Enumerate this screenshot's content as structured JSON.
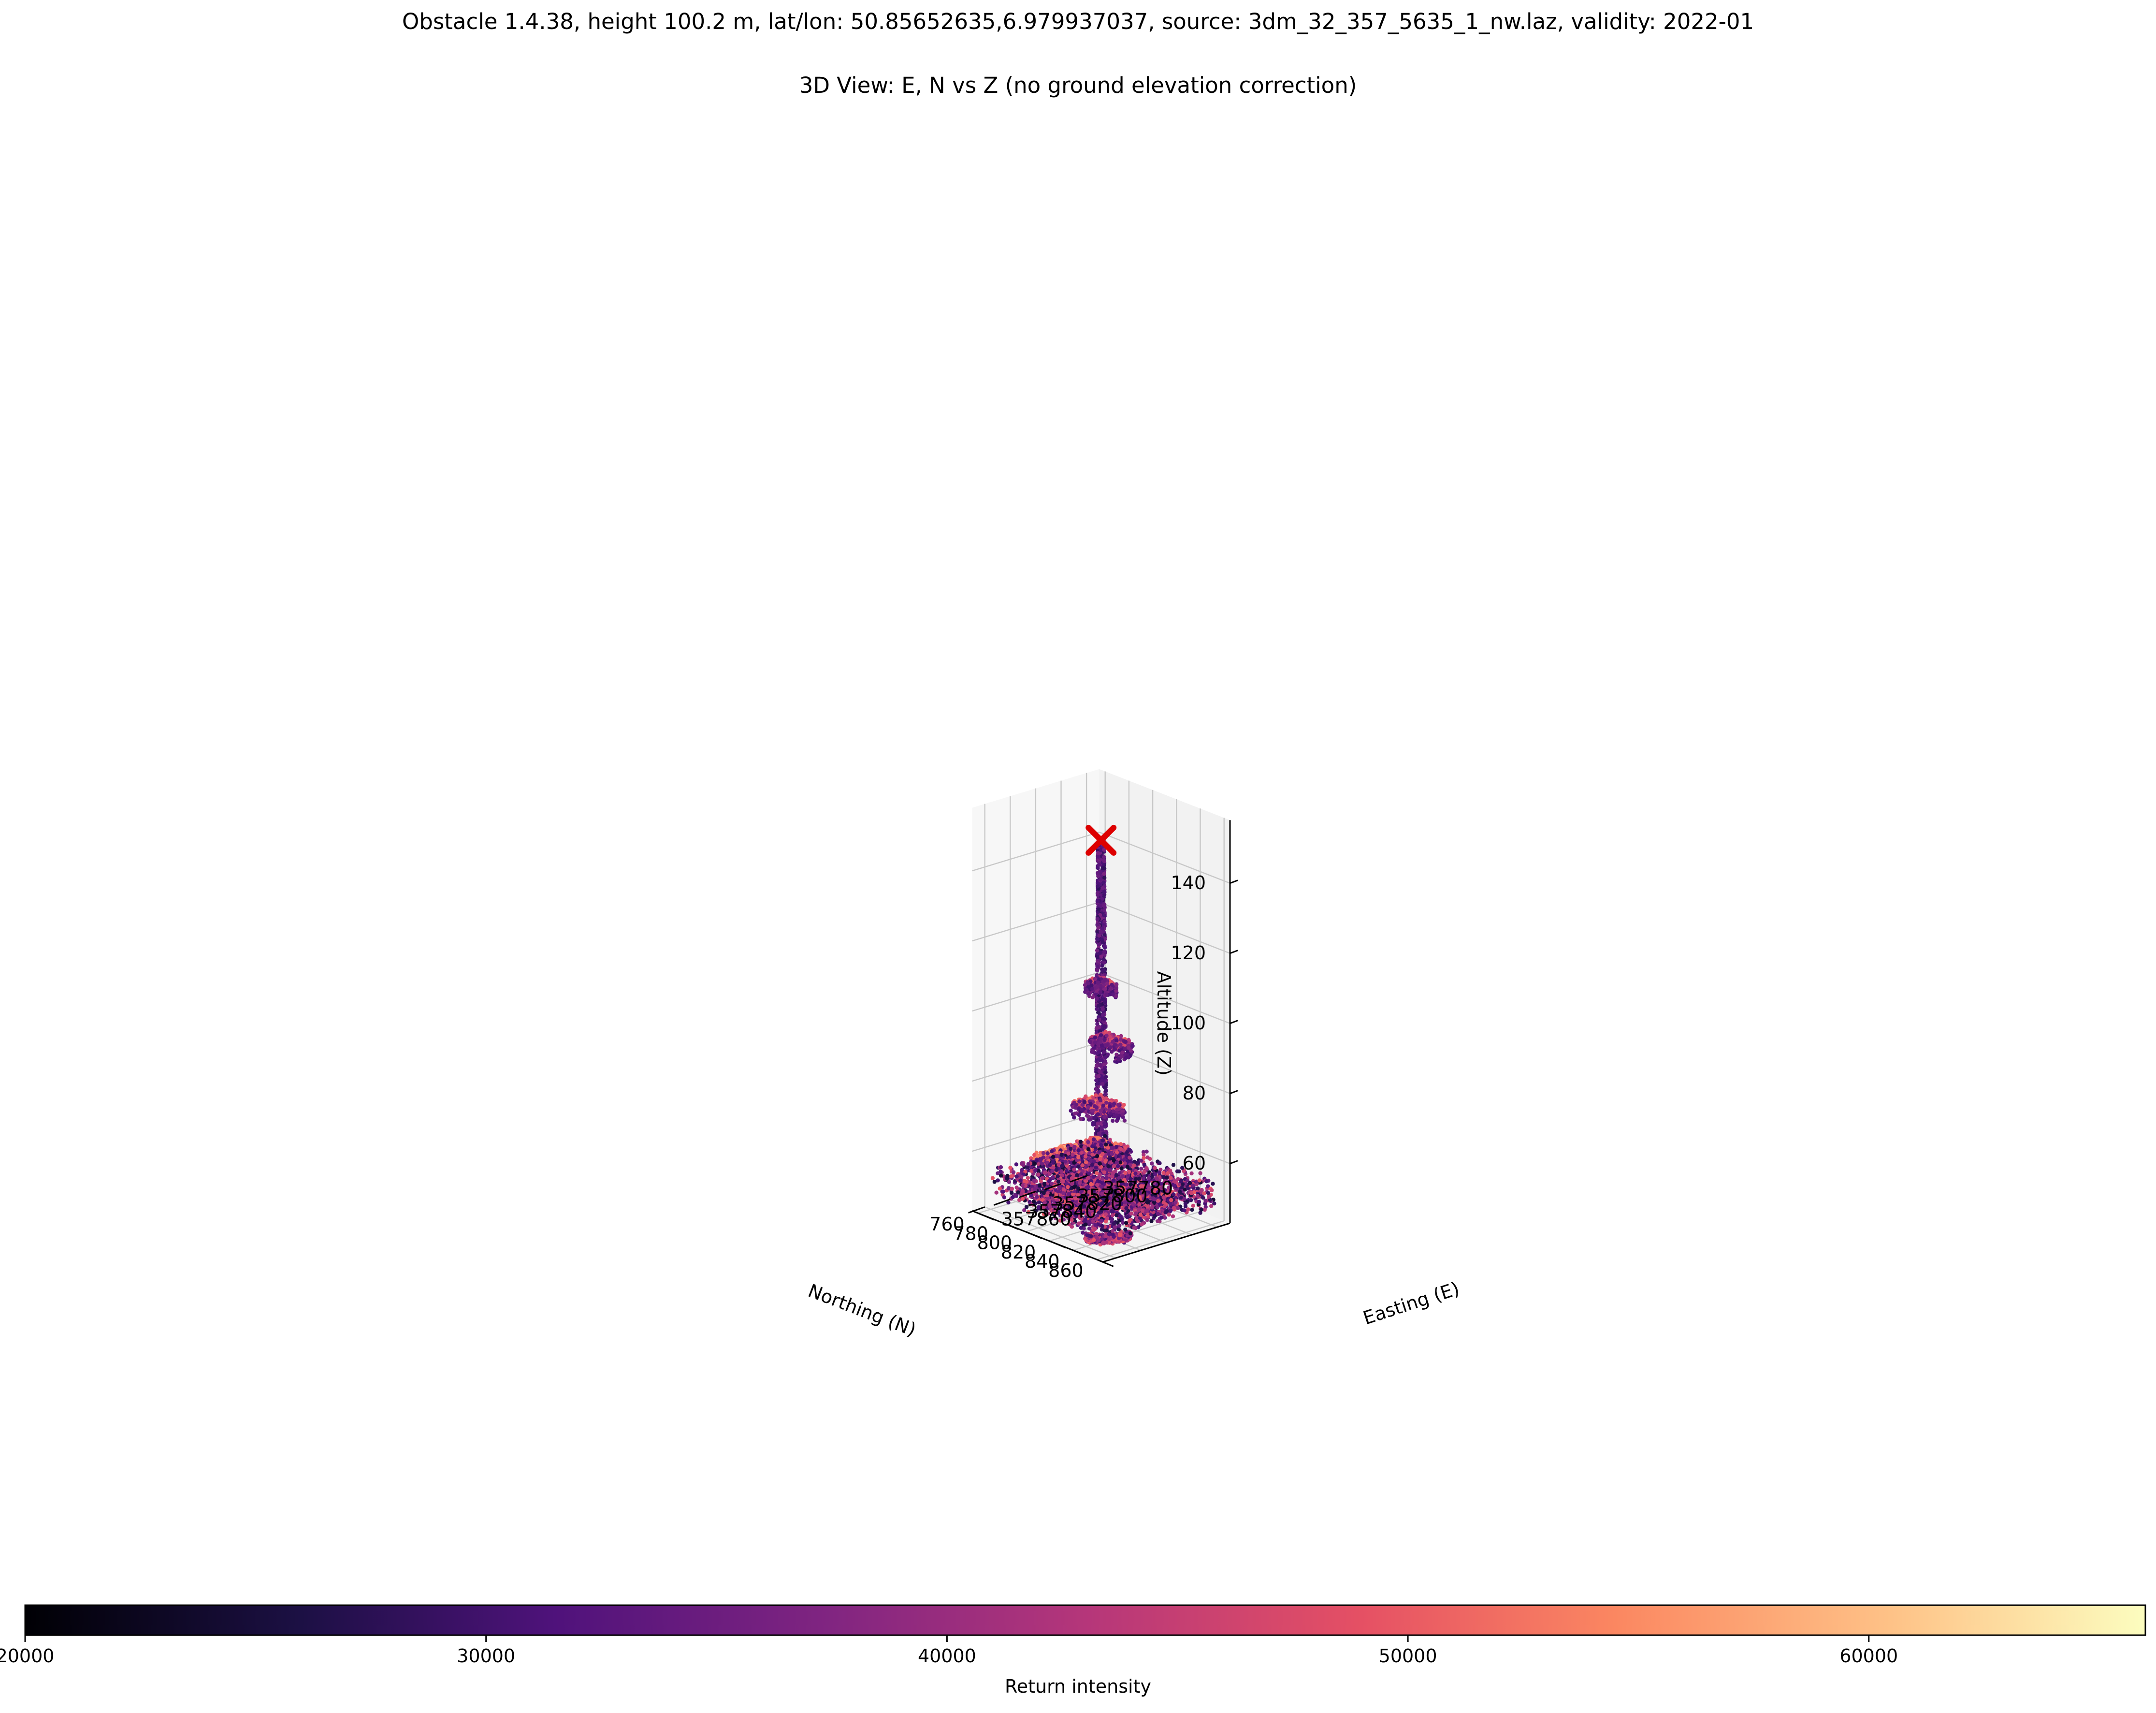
{
  "title": "Obstacle 1.4.38, height 100.2 m, lat/lon: 50.85652635,6.979937037, source: 3dm_32_357_5635_1_nw.laz, validity: 2022-01",
  "subtitle": "3D View: E, N vs Z (no ground elevation correction)",
  "chart_data": {
    "type": "scatter",
    "title": "3D View: E, N vs Z (no ground elevation correction)",
    "xlabel": "Easting (E)",
    "ylabel": "Northing (N)",
    "zlabel": "Altitude (Z)",
    "xlim": [
      357770,
      357870
    ],
    "ylim": [
      755,
      865
    ],
    "zlim": [
      43,
      158
    ],
    "x_ticks": [
      "357780",
      "357800",
      "357820",
      "357840",
      "357860"
    ],
    "y_ticks": [
      "760",
      "780",
      "800",
      "820",
      "840",
      "860"
    ],
    "z_ticks": [
      "60",
      "80",
      "100",
      "120",
      "140"
    ],
    "grid": true,
    "colormap": "magma",
    "colorbar": {
      "label": "Return intensity",
      "min": 20000,
      "max": 66000,
      "ticks": [
        "20000",
        "30000",
        "40000",
        "50000",
        "60000"
      ],
      "orientation": "horizontal"
    },
    "obstacle_marker": {
      "easting": 357820,
      "northing": 810,
      "altitude": 150.5,
      "symbol": "x",
      "color": "#dd0000"
    },
    "structures": [
      {
        "kind": "tower",
        "easting": 357820,
        "northing": 810,
        "z_min": 58,
        "z_max": 150
      },
      {
        "kind": "building",
        "e": [
          357792,
          357812
        ],
        "n": [
          776,
          800
        ],
        "z": 70,
        "intensity": 48000
      },
      {
        "kind": "building",
        "e": [
          357798,
          357826
        ],
        "n": [
          785,
          812
        ],
        "z": 60,
        "intensity": 50000
      },
      {
        "kind": "building",
        "e": [
          357812,
          357845
        ],
        "n": [
          775,
          795
        ],
        "z": 58,
        "intensity": 52000
      },
      {
        "kind": "building",
        "e": [
          357830,
          357848
        ],
        "n": [
          805,
          840
        ],
        "z": 56,
        "intensity": 36000
      },
      {
        "kind": "building",
        "e": [
          357845,
          357865
        ],
        "n": [
          808,
          845
        ],
        "z": 54,
        "intensity": 38000
      },
      {
        "kind": "building",
        "e": [
          357800,
          357818
        ],
        "n": [
          825,
          850
        ],
        "z": 52,
        "intensity": 34000
      },
      {
        "kind": "elevated",
        "e": [
          357776,
          357790
        ],
        "n": [
          768,
          790
        ],
        "z": 85,
        "intensity": 44000
      },
      {
        "kind": "elevated",
        "e": [
          357775,
          357786
        ],
        "n": [
          760,
          775
        ],
        "z": 100,
        "intensity": 46000
      },
      {
        "kind": "ring",
        "e": [
          357830,
          357870
        ],
        "n": [
          835,
          865
        ],
        "z": 48,
        "intensity": 34000
      }
    ]
  }
}
